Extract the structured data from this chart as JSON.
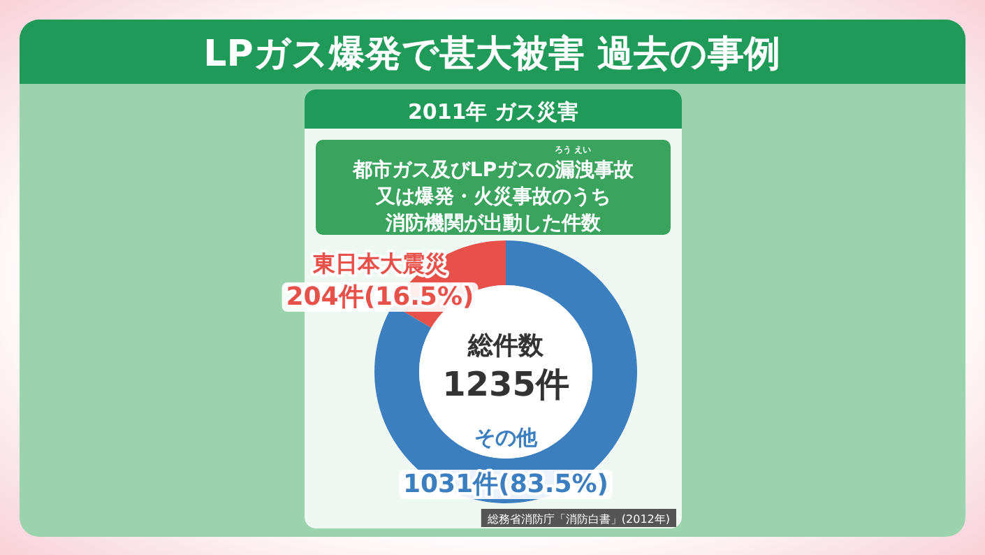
{
  "chart_data": {
    "type": "donut",
    "title": "LPガス爆発で甚大被害 過去の事例",
    "subtitle": "2011年 ガス災害",
    "categories": [
      "東日本大震災",
      "その他"
    ],
    "values": [
      204,
      1031
    ],
    "value_labels": [
      "204件(16.5%)",
      "1031件(83.5%)"
    ],
    "colors": [
      "#e8504a",
      "#3b7fc0"
    ],
    "annotations": [
      "都市ガス及びLPガスの漏洩事故",
      "又は爆発・火災事故のうち",
      "消防機関が出動した件数",
      "ろう えい",
      "総件数",
      "1235件",
      "総務省消防庁「消防白書」(2012年)"
    ]
  }
}
